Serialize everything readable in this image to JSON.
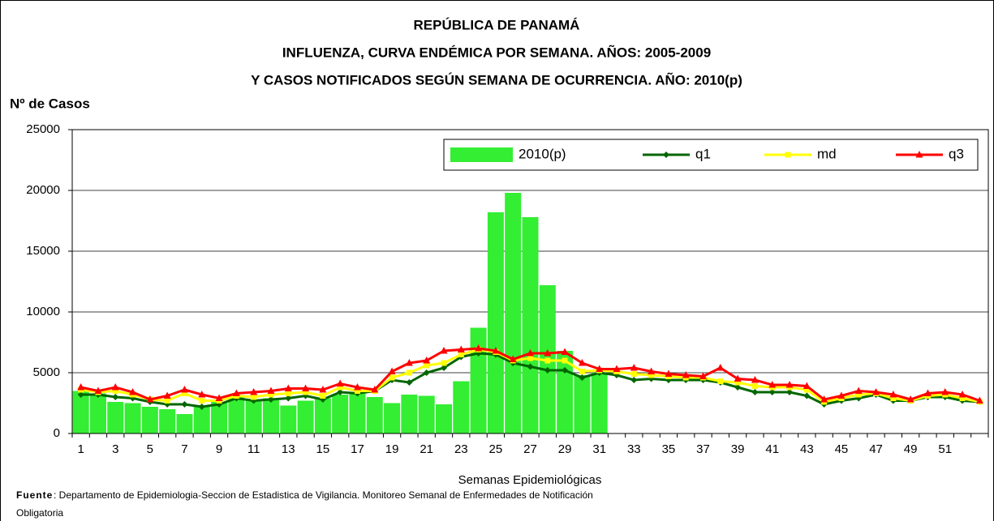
{
  "chart_data": {
    "type": "bar-line",
    "title_lines": [
      "REPÚBLICA DE PANAMÁ",
      "INFLUENZA, CURVA ENDÉMICA POR SEMANA.  AÑOS: 2005-2009",
      "Y CASOS NOTIFICADOS SEGÚN SEMANA DE OCURRENCIA.  AÑO: 2010(p)"
    ],
    "y_label": "Nº de Casos",
    "x_label": "Semanas Epidemiológicas",
    "source_label": "Fuente",
    "source_lines": [
      ": Departamento de Epidemiologia-Seccion de Estadistica de Vigilancia. Monitoreo Semanal de Enfermedades de Notificación",
      "Obligatoria"
    ],
    "categories": [
      "1",
      null,
      "3",
      null,
      "5",
      null,
      "7",
      null,
      "9",
      null,
      "11",
      null,
      "13",
      null,
      "15",
      null,
      "17",
      null,
      "19",
      null,
      "21",
      null,
      "23",
      null,
      "25",
      null,
      "27",
      null,
      "29",
      null,
      "31",
      null,
      "33",
      null,
      "35",
      null,
      "37",
      null,
      "39",
      null,
      "41",
      null,
      "43",
      null,
      "45",
      null,
      "47",
      null,
      "49",
      null,
      "51",
      null,
      null
    ],
    "ylim": [
      0,
      25000
    ],
    "yticks": [
      0,
      5000,
      10000,
      15000,
      20000,
      25000
    ],
    "grid": true,
    "series": [
      {
        "name": "2010(p)",
        "kind": "bar",
        "color": "#33ee33",
        "values": [
          3500,
          3300,
          2600,
          2500,
          2200,
          2000,
          1600,
          2200,
          2600,
          3000,
          2700,
          2900,
          2300,
          2700,
          2900,
          3200,
          3300,
          3000,
          2500,
          3200,
          3100,
          2400,
          4300,
          8700,
          18200,
          19800,
          17800,
          12200,
          6800,
          4800,
          5000,
          null,
          null,
          null,
          null,
          null,
          null,
          null,
          null,
          null,
          null,
          null,
          null,
          null,
          null,
          null,
          null,
          null,
          null,
          null,
          null,
          null,
          null
        ]
      },
      {
        "name": "q1",
        "kind": "line",
        "marker": "diamond",
        "color": "#006600",
        "values": [
          3200,
          3200,
          3000,
          2900,
          2600,
          2400,
          2400,
          2200,
          2400,
          2900,
          2700,
          2800,
          2900,
          3100,
          2800,
          3400,
          3300,
          3500,
          4400,
          4200,
          5000,
          5400,
          6300,
          6600,
          6500,
          5800,
          5500,
          5200,
          5200,
          4600,
          5000,
          4800,
          4400,
          4500,
          4400,
          4400,
          4400,
          4200,
          3800,
          3400,
          3400,
          3400,
          3100,
          2400,
          2700,
          2900,
          3200,
          2700,
          2700,
          3000,
          3000,
          2700,
          2600
        ]
      },
      {
        "name": "md",
        "kind": "line",
        "marker": "square",
        "color": "#ffff00",
        "values": [
          3600,
          3400,
          3500,
          3200,
          2800,
          2700,
          3300,
          2700,
          2700,
          3100,
          3000,
          3200,
          3300,
          3400,
          3100,
          3800,
          3500,
          3500,
          4600,
          5000,
          5600,
          5800,
          6500,
          6900,
          6700,
          6000,
          6200,
          6000,
          6000,
          5100,
          5200,
          5100,
          4900,
          4800,
          4700,
          4600,
          4600,
          4300,
          4200,
          3900,
          3800,
          3800,
          3600,
          2600,
          2900,
          3200,
          3300,
          2900,
          2700,
          3100,
          3200,
          2900,
          2600
        ]
      },
      {
        "name": "q3",
        "kind": "line",
        "marker": "triangle",
        "color": "#ff0000",
        "values": [
          3800,
          3500,
          3800,
          3400,
          2800,
          3100,
          3600,
          3200,
          2900,
          3300,
          3400,
          3500,
          3700,
          3700,
          3600,
          4100,
          3800,
          3600,
          5100,
          5800,
          6000,
          6800,
          6900,
          7000,
          6800,
          6100,
          6600,
          6600,
          6700,
          5800,
          5300,
          5300,
          5400,
          5100,
          4900,
          4800,
          4700,
          5400,
          4500,
          4400,
          4000,
          4000,
          3900,
          2800,
          3100,
          3500,
          3400,
          3200,
          2800,
          3300,
          3400,
          3200,
          2700
        ]
      }
    ]
  }
}
